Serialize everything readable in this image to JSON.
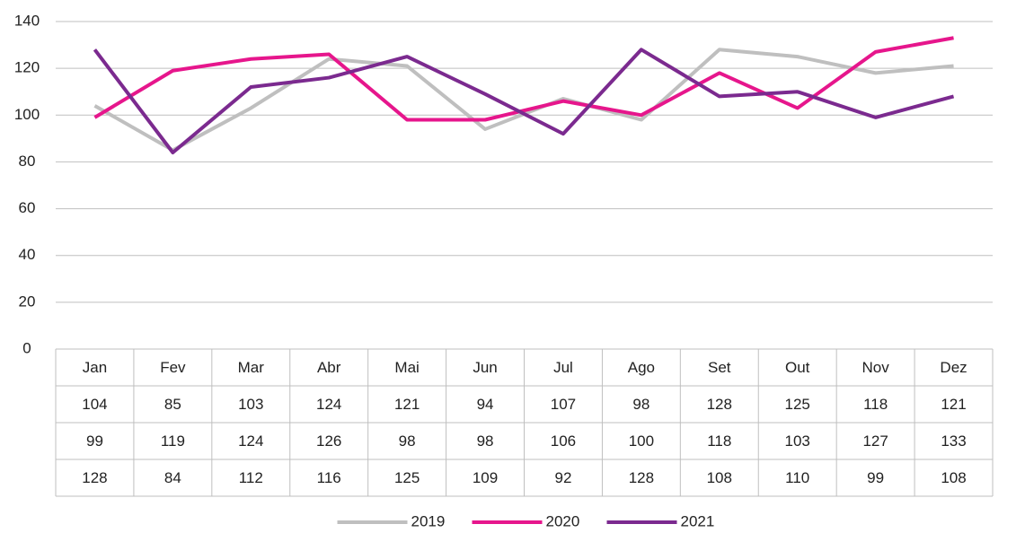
{
  "chart_data": {
    "type": "line",
    "categories": [
      "Jan",
      "Fev",
      "Mar",
      "Abr",
      "Mai",
      "Jun",
      "Jul",
      "Ago",
      "Set",
      "Out",
      "Nov",
      "Dez"
    ],
    "series": [
      {
        "name": "2019",
        "color": "#bfbfbf",
        "values": [
          104,
          85,
          103,
          124,
          121,
          94,
          107,
          98,
          128,
          125,
          118,
          121
        ]
      },
      {
        "name": "2020",
        "color": "#e6168c",
        "values": [
          99,
          119,
          124,
          126,
          98,
          98,
          106,
          100,
          118,
          103,
          127,
          133
        ]
      },
      {
        "name": "2021",
        "color": "#7b2a8f",
        "values": [
          128,
          84,
          112,
          116,
          125,
          109,
          92,
          128,
          108,
          110,
          99,
          108
        ]
      }
    ],
    "ylim": [
      0,
      140
    ],
    "yticks": [
      0,
      20,
      40,
      60,
      80,
      100,
      120,
      140
    ],
    "grid": true,
    "legend": "bottom"
  }
}
